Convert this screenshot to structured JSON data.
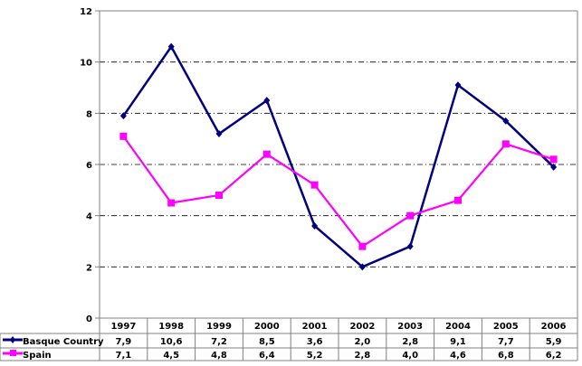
{
  "chart_data": {
    "type": "line",
    "title": "",
    "xlabel": "",
    "ylabel": "",
    "ylim": [
      0,
      12
    ],
    "yticks": [
      "0",
      "2",
      "4",
      "6",
      "8",
      "10",
      "12"
    ],
    "grid": true,
    "legend": "data-table-left",
    "categories": [
      "1997",
      "1998",
      "1999",
      "2000",
      "2001",
      "2002",
      "2003",
      "2004",
      "2005",
      "2006"
    ],
    "series": [
      {
        "name": "Basque Country",
        "color": "#000080",
        "marker": "diamond",
        "values": [
          7.9,
          10.6,
          7.2,
          8.5,
          3.6,
          2.0,
          2.8,
          9.1,
          7.7,
          5.9
        ],
        "labels": [
          "7,9",
          "10,6",
          "7,2",
          "8,5",
          "3,6",
          "2,0",
          "2,8",
          "9,1",
          "7,7",
          "5,9"
        ]
      },
      {
        "name": "Spain",
        "color": "#FF00FF",
        "marker": "square",
        "values": [
          7.1,
          4.5,
          4.8,
          6.4,
          5.2,
          2.8,
          4.0,
          4.6,
          6.8,
          6.2
        ],
        "labels": [
          "7,1",
          "4,5",
          "4,8",
          "6,4",
          "5,2",
          "2,8",
          "4,0",
          "4,6",
          "6,8",
          "6,2"
        ]
      }
    ]
  }
}
